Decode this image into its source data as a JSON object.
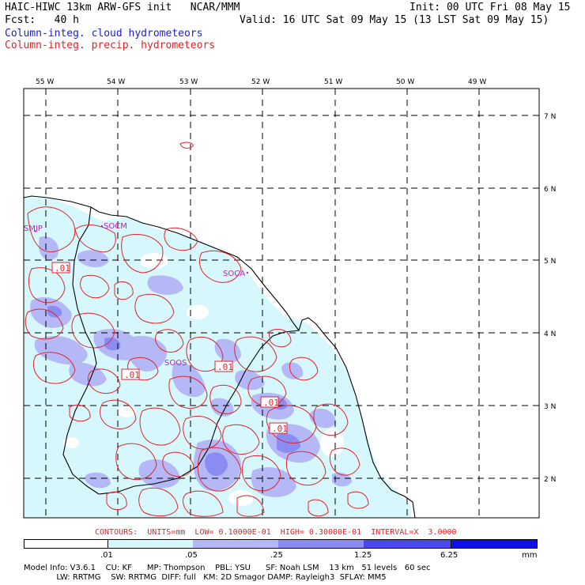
{
  "header": {
    "title": "HAIC-HIWC 13km ARW-GFS init   NCAR/MMM",
    "init": "Init: 00 UTC Fri 08 May 15",
    "fcst": "Fcst:   40 h",
    "valid": "Valid: 16 UTC Sat 09 May 15 (13 LST Sat 09 May 15)",
    "legend_cloud": "Column-integ. cloud hydrometeors",
    "legend_precip": "Column-integ. precip. hydrometeors"
  },
  "axes": {
    "lon_labels": [
      "55 W",
      "54 W",
      "53 W",
      "52 W",
      "51 W",
      "50 W",
      "49 W"
    ],
    "lat_labels": [
      "7 N",
      "6 N",
      "5 N",
      "4 N",
      "3 N",
      "2 N"
    ]
  },
  "map_labels": {
    "smjp": "SMJP",
    "socm": "SOCM",
    "soca": "SOCA",
    "soos": "SOOS"
  },
  "contour_labels": [
    ".01",
    ".01",
    ".01",
    ".01",
    ".01"
  ],
  "contours_line": "CONTOURS:  UNITS=mm  LOW= 0.10000E-01  HIGH= 0.30000E-01  INTERVAL=X  3.0000",
  "colorbar": {
    "levels": [
      ".01",
      ".05",
      ".25",
      "1.25",
      "6.25"
    ],
    "units": "mm",
    "colors": [
      "#ffffff",
      "#d6f7fb",
      "#b5b8f7",
      "#7f80f2",
      "#4a4aec",
      "#1010e6"
    ]
  },
  "footer": {
    "line1": "Model Info: V3.6.1    CU: KF      MP: Thompson    PBL: YSU      SF: Noah LSM    13 km   51 levels   60 sec",
    "line2": "             LW: RRTMG    SW: RRTMG  DIFF: full   KM: 2D Smagor DAMP: Rayleigh3  SFLAY: MM5"
  },
  "colors": {
    "cloud_text": "#1c1cd6",
    "precip_contour": "#e0242c",
    "station": "#c020c0"
  }
}
